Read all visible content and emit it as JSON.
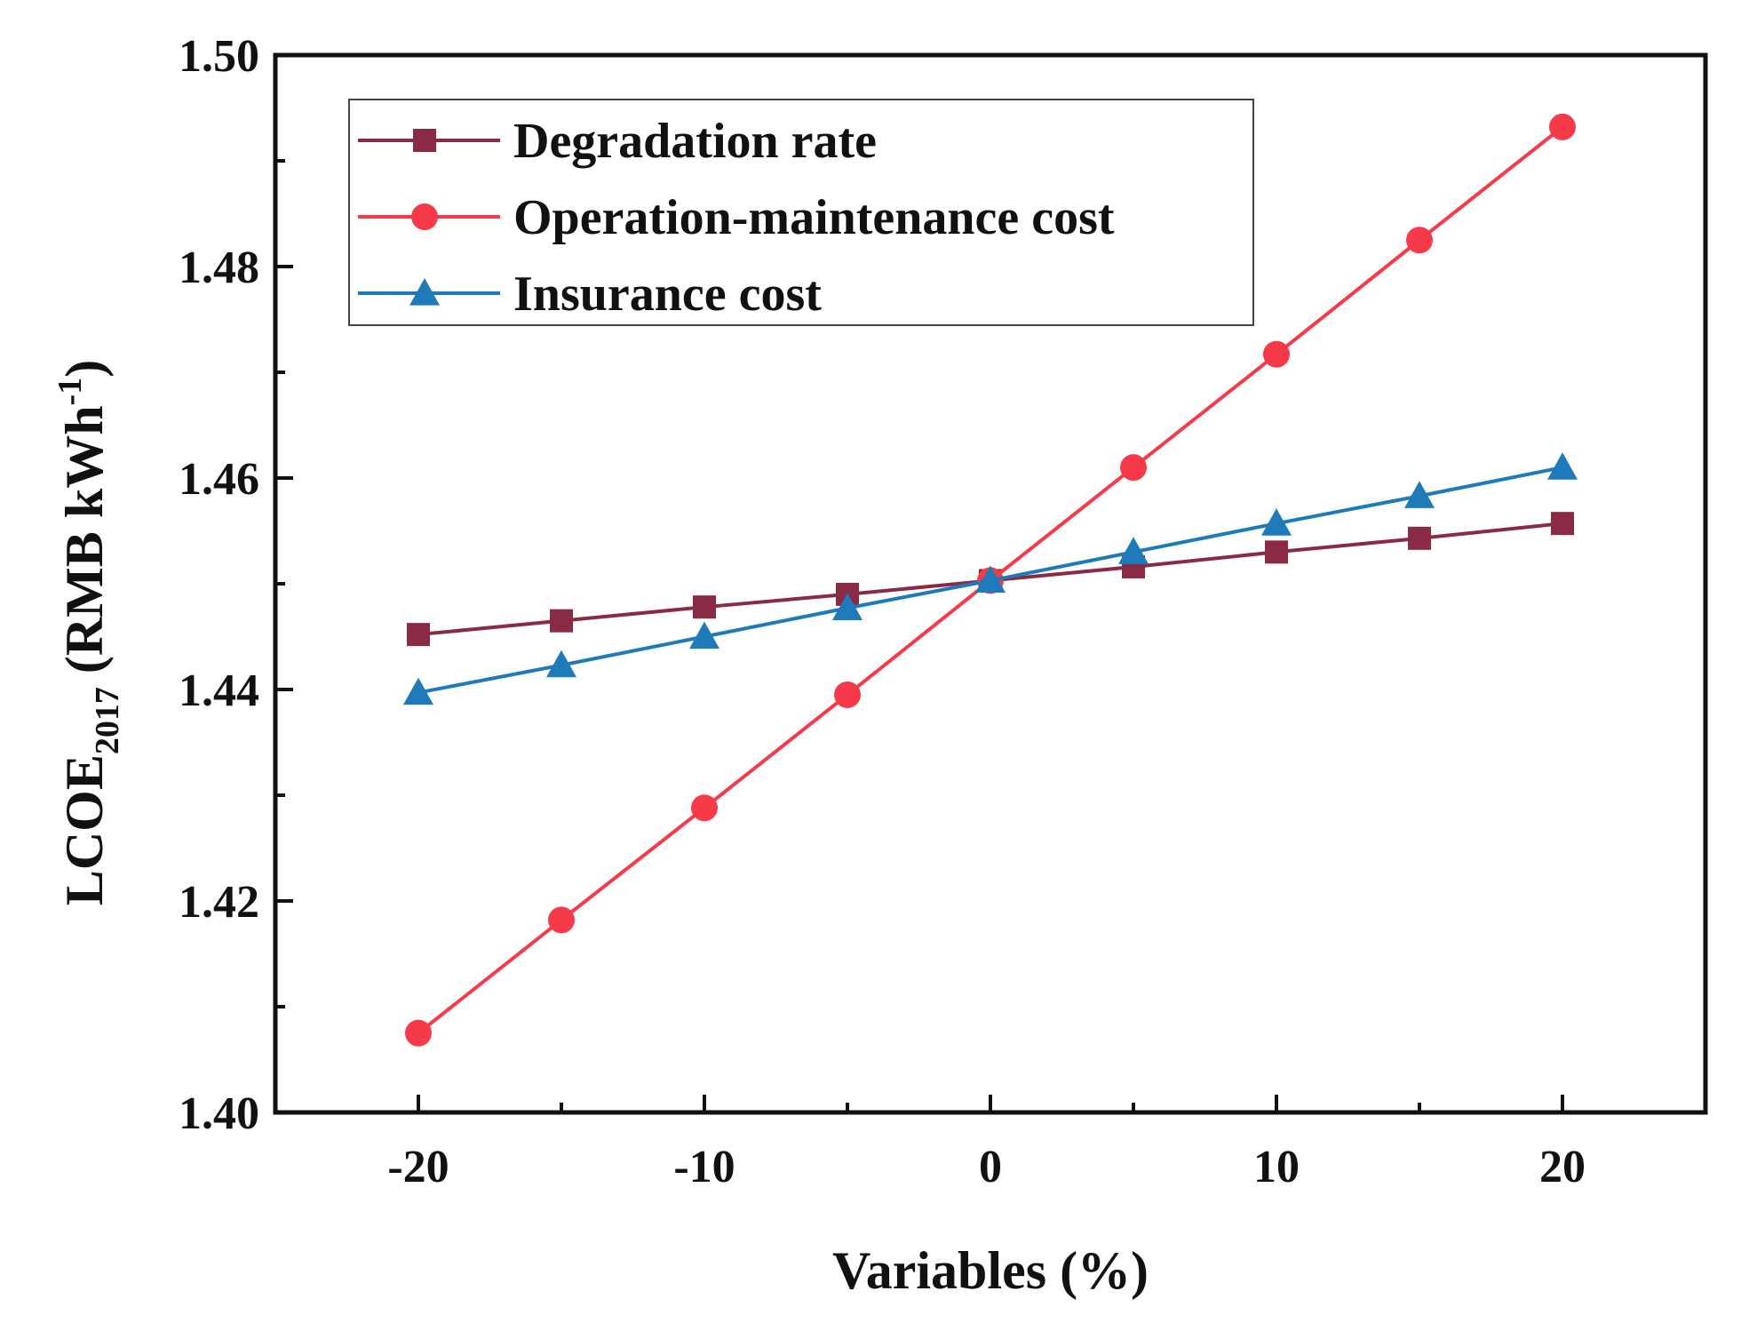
{
  "chart_data": {
    "type": "line",
    "title": "",
    "xlabel": "Variables (%)",
    "ylabel": {
      "main": "LCOE",
      "subscript": "2017",
      "unit_open": " (RMB kWh",
      "superscript": "-1",
      "unit_close": ")"
    },
    "x": [
      -20,
      -15,
      -10,
      -5,
      0,
      5,
      10,
      15,
      20
    ],
    "xlim": [
      -25,
      25
    ],
    "ylim": [
      1.4,
      1.5
    ],
    "x_ticks": [
      -20,
      -10,
      0,
      10,
      20
    ],
    "x_minor_ticks": [
      -15,
      -5,
      5,
      15
    ],
    "x_tick_labels": [
      "-20",
      "-10",
      "0",
      "10",
      "20"
    ],
    "y_ticks": [
      1.4,
      1.42,
      1.44,
      1.46,
      1.48,
      1.5
    ],
    "y_minor_ticks": [
      1.41,
      1.43,
      1.45,
      1.47,
      1.49
    ],
    "y_tick_labels": [
      "1.40",
      "1.42",
      "1.44",
      "1.46",
      "1.48",
      "1.50"
    ],
    "grid": false,
    "legend_position": "top-left",
    "series": [
      {
        "name": "Degradation rate",
        "marker": "square",
        "color": "#8b2a45",
        "values": [
          1.4452,
          1.4465,
          1.4478,
          1.449,
          1.4503,
          1.4516,
          1.453,
          1.4543,
          1.4557
        ]
      },
      {
        "name": "Operation-maintenance cost",
        "marker": "circle",
        "color": "#f63a4a",
        "values": [
          1.4075,
          1.4182,
          1.4288,
          1.4395,
          1.4503,
          1.461,
          1.4717,
          1.4825,
          1.4932
        ]
      },
      {
        "name": "Insurance cost",
        "marker": "triangle",
        "color": "#1e7ab8",
        "values": [
          1.4397,
          1.4423,
          1.445,
          1.4477,
          1.4503,
          1.453,
          1.4557,
          1.4583,
          1.461
        ]
      }
    ]
  }
}
